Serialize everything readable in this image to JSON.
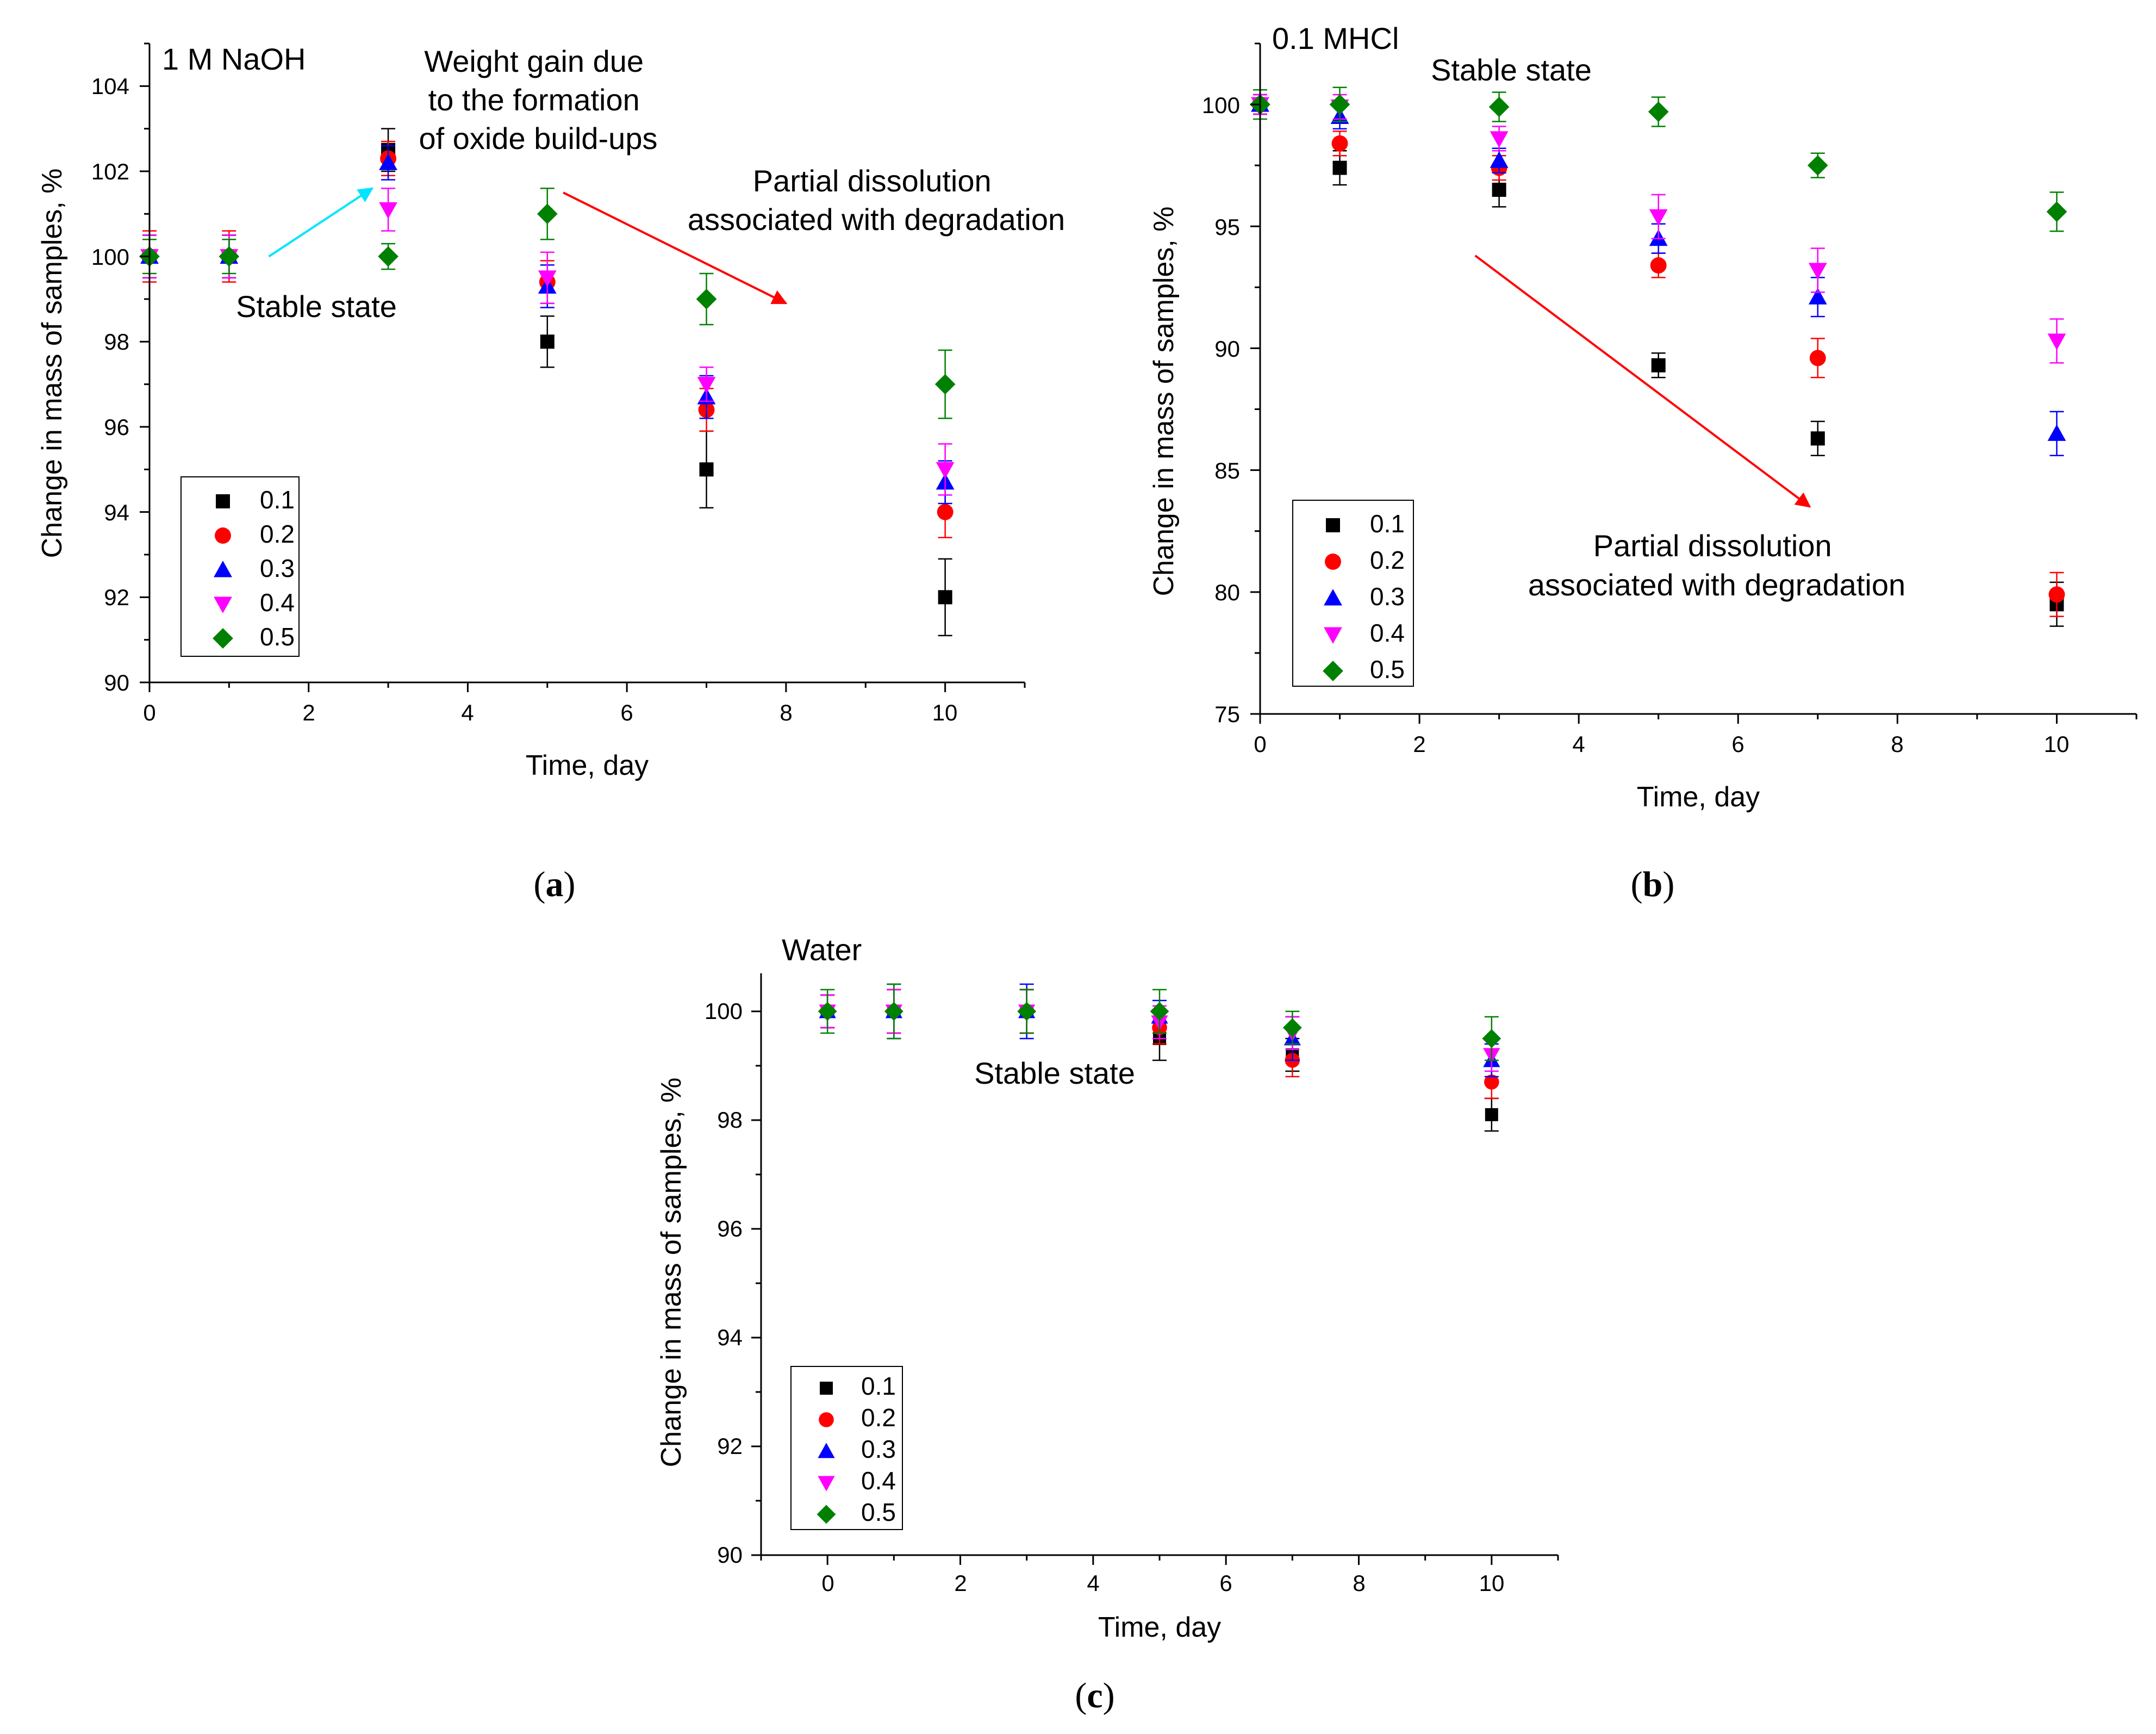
{
  "colors": {
    "0.1": "#000000",
    "0.2": "#ff0000",
    "0.3": "#0000ff",
    "0.4": "#ff00ff",
    "0.5": "#008000",
    "arrow_red": "#ff0000",
    "arrow_cyan": "#00e5ff"
  },
  "chart_data": [
    {
      "type": "scatter",
      "panel": "a",
      "panel_label": {
        "open": "(",
        "letter": "a",
        "close": ")"
      },
      "title": "1 M NaOH",
      "xlabel": "Time, day",
      "ylabel": "Change in mass of samples, %",
      "xlim": [
        0,
        11
      ],
      "ylim": [
        90,
        105
      ],
      "xticks": [
        "0",
        "2",
        "4",
        "6",
        "8",
        "10"
      ],
      "yticks": [
        "90",
        "92",
        "94",
        "96",
        "98",
        "100",
        "102",
        "104"
      ],
      "x": [
        0,
        1,
        3,
        5,
        7,
        10
      ],
      "series": [
        {
          "name": "0.1",
          "marker": "square",
          "values": [
            100,
            100,
            102.5,
            98.0,
            95.0,
            92.0
          ],
          "errors": [
            0.5,
            0.5,
            0.5,
            0.6,
            0.9,
            0.9
          ]
        },
        {
          "name": "0.2",
          "marker": "circle",
          "values": [
            100,
            100,
            102.3,
            99.4,
            96.4,
            94.0
          ],
          "errors": [
            0.6,
            0.6,
            0.4,
            0.5,
            0.5,
            0.6
          ]
        },
        {
          "name": "0.3",
          "marker": "triangle-up",
          "values": [
            100,
            100,
            102.2,
            99.3,
            96.7,
            94.7
          ],
          "errors": [
            0.5,
            0.5,
            0.4,
            0.5,
            0.5,
            0.5
          ]
        },
        {
          "name": "0.4",
          "marker": "triangle-down",
          "values": [
            100,
            100,
            101.1,
            99.5,
            97.0,
            95.0
          ],
          "errors": [
            0.5,
            0.5,
            0.5,
            0.6,
            0.4,
            0.6
          ]
        },
        {
          "name": "0.5",
          "marker": "diamond",
          "values": [
            100,
            100,
            100.0,
            101.0,
            99.0,
            97.0
          ],
          "errors": [
            0.4,
            0.4,
            0.3,
            0.6,
            0.6,
            0.8
          ]
        }
      ],
      "annotations": [
        {
          "lines": [
            "Weight gain due",
            "to the formation",
            "of oxide build-ups"
          ]
        },
        {
          "lines": [
            "Partial dissolution",
            "associated with degradation"
          ]
        },
        {
          "lines": [
            "Stable state"
          ]
        }
      ],
      "arrows": [
        {
          "from": [
            1.5,
            100.0
          ],
          "to": [
            2.8,
            101.6
          ],
          "color": "cyan"
        },
        {
          "from": [
            5.2,
            101.5
          ],
          "to": [
            8.0,
            98.9
          ],
          "color": "red"
        }
      ],
      "legend": "lower-left"
    },
    {
      "type": "scatter",
      "panel": "b",
      "panel_label": {
        "open": "(",
        "letter": "b",
        "close": ")"
      },
      "title": "0.1 MHCl",
      "xlabel": "Time, day",
      "ylabel": "Change in mass of samples, %",
      "xlim": [
        0,
        11
      ],
      "ylim": [
        75,
        102.5
      ],
      "xticks": [
        "0",
        "2",
        "4",
        "6",
        "8",
        "10"
      ],
      "yticks": [
        "75",
        "80",
        "85",
        "90",
        "95",
        "100"
      ],
      "x": [
        0,
        1,
        3,
        5,
        7,
        10
      ],
      "series": [
        {
          "name": "0.1",
          "marker": "square",
          "values": [
            100,
            97.4,
            96.5,
            89.3,
            86.3,
            79.5
          ],
          "errors": [
            0.4,
            0.7,
            0.7,
            0.5,
            0.7,
            0.9
          ]
        },
        {
          "name": "0.2",
          "marker": "circle",
          "values": [
            100,
            98.4,
            97.4,
            93.4,
            89.6,
            79.9
          ],
          "errors": [
            0.4,
            0.5,
            0.5,
            0.5,
            0.8,
            0.9
          ]
        },
        {
          "name": "0.3",
          "marker": "triangle-up",
          "values": [
            100,
            99.5,
            97.7,
            94.5,
            92.1,
            86.5
          ],
          "errors": [
            0.4,
            0.5,
            0.5,
            0.6,
            0.8,
            0.9
          ]
        },
        {
          "name": "0.4",
          "marker": "triangle-down",
          "values": [
            100,
            99.9,
            98.6,
            95.4,
            93.2,
            90.3
          ],
          "errors": [
            0.4,
            0.5,
            0.5,
            0.9,
            0.9,
            0.9
          ]
        },
        {
          "name": "0.5",
          "marker": "diamond",
          "values": [
            100,
            100,
            99.9,
            99.7,
            97.5,
            95.6
          ],
          "errors": [
            0.6,
            0.7,
            0.6,
            0.6,
            0.5,
            0.8
          ]
        }
      ],
      "annotations": [
        {
          "lines": [
            "Stable state"
          ]
        },
        {
          "lines": [
            "Partial dissolution",
            "associated with degradation"
          ]
        }
      ],
      "arrows": [
        {
          "from": [
            2.7,
            93.8
          ],
          "to": [
            6.9,
            83.5
          ],
          "color": "red"
        }
      ],
      "legend": "lower-left"
    },
    {
      "type": "scatter",
      "panel": "c",
      "panel_label": {
        "open": "(",
        "letter": "c",
        "close": ")"
      },
      "title": "Water",
      "xlabel": "Time, day",
      "ylabel": "Change in mass of samples, %",
      "xlim": [
        -1,
        11
      ],
      "ylim": [
        90,
        100.7
      ],
      "xticks": [
        "0",
        "2",
        "4",
        "6",
        "8",
        "10"
      ],
      "yticks": [
        "90",
        "92",
        "94",
        "96",
        "98",
        "100"
      ],
      "x": [
        0,
        1,
        3,
        5,
        7,
        10
      ],
      "series": [
        {
          "name": "0.1",
          "marker": "square",
          "values": [
            100,
            100,
            100,
            99.5,
            99.2,
            98.1
          ],
          "errors": [
            0.3,
            0.4,
            0.4,
            0.4,
            0.3,
            0.3
          ]
        },
        {
          "name": "0.2",
          "marker": "circle",
          "values": [
            100,
            100,
            100,
            99.7,
            99.1,
            98.7
          ],
          "errors": [
            0.3,
            0.4,
            0.4,
            0.3,
            0.3,
            0.3
          ]
        },
        {
          "name": "0.3",
          "marker": "triangle-up",
          "values": [
            100,
            100,
            100,
            99.9,
            99.5,
            99.1
          ],
          "errors": [
            0.3,
            0.5,
            0.5,
            0.3,
            0.4,
            0.3
          ]
        },
        {
          "name": "0.4",
          "marker": "triangle-down",
          "values": [
            100,
            100,
            100,
            99.8,
            99.6,
            99.2
          ],
          "errors": [
            0.3,
            0.4,
            0.4,
            0.3,
            0.3,
            0.3
          ]
        },
        {
          "name": "0.5",
          "marker": "diamond",
          "values": [
            100,
            100,
            100,
            100,
            99.7,
            99.5
          ],
          "errors": [
            0.4,
            0.5,
            0.4,
            0.4,
            0.3,
            0.4
          ]
        }
      ],
      "annotations": [
        {
          "lines": [
            "Stable state"
          ]
        }
      ],
      "arrows": [],
      "legend": "lower-left"
    }
  ]
}
